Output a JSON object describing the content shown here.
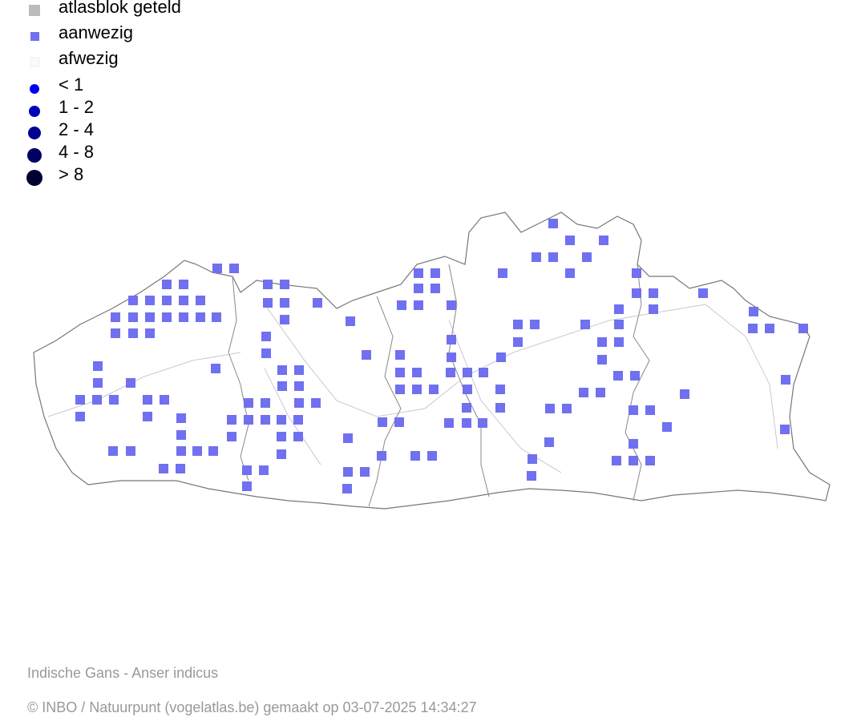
{
  "legend": {
    "items": [
      "atlasblok geteld",
      "aanwezig",
      "afwezig",
      "< 1",
      "1 - 2",
      "2 - 4",
      "4 - 8",
      "> 8"
    ]
  },
  "footer": {
    "species": "Indische Gans - Anser indicus",
    "credit": "© INBO / Natuurpunt (vogelatlas.be) gemaakt op 03-07-2025 14:34:27"
  }
}
